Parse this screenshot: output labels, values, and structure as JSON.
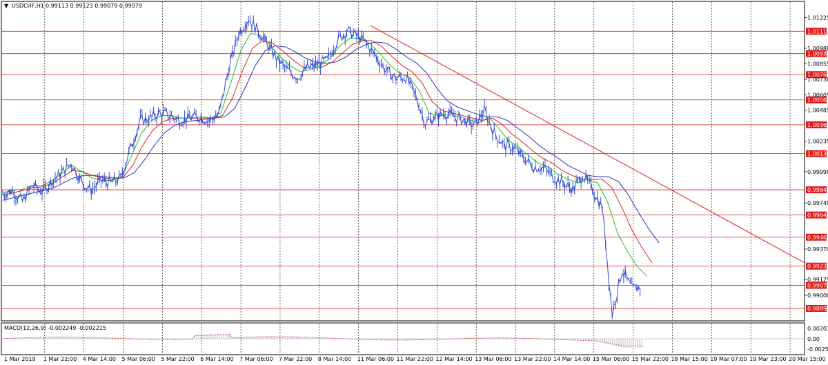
{
  "header": {
    "symbol_text": "USDCHF,H1",
    "ohlc_text": "0.99113 0.99123 0.99079 0.99079",
    "dropdown_glyph": "▼"
  },
  "macd": {
    "title": "MACD(12,26,9) -0.002249 -0.002215",
    "ticks": [
      "0.002016",
      "0.00",
      "-0.002592"
    ]
  },
  "chart_data": {
    "type": "line",
    "price_axis_ticks": [
      "1.01225",
      "1.00980",
      "1.00855",
      "1.00730",
      "1.00605",
      "1.00485",
      "1.00235",
      "0.99990",
      "0.99740",
      "0.99370",
      "0.99125",
      "0.99000"
    ],
    "ylim": [
      0.988,
      1.0135
    ],
    "levels": [
      "1.01116",
      "1.00937",
      "1.00768",
      "1.00566",
      "1.00366",
      "1.00135",
      "0.99845",
      "0.99643",
      "0.99465",
      "0.99233",
      "0.99079",
      "0.98894"
    ],
    "x_labels": [
      "1 Mar 2019",
      "1 Mar 22:00",
      "4 Mar 14:00",
      "5 Mar 06:00",
      "5 Mar 22:00",
      "6 Mar 14:00",
      "7 Mar 06:00",
      "7 Mar 22:00",
      "8 Mar 14:00",
      "11 Mar 06:00",
      "11 Mar 22:00",
      "12 Mar 14:00",
      "13 Mar 06:00",
      "13 Mar 22:00",
      "14 Mar 14:00",
      "15 Mar 06:00",
      "15 Mar 22:00",
      "18 Mar 15:00",
      "19 Mar 07:00",
      "19 Mar 23:00",
      "20 Mar 15:00"
    ],
    "price_path": [
      0.9981,
      0.9984,
      0.9975,
      0.9988,
      0.9983,
      0.9992,
      0.9998,
      1.0006,
      0.9991,
      0.9984,
      0.9992,
      0.999,
      0.9994,
      1.0018,
      1.004,
      1.0042,
      1.0046,
      1.0044,
      1.004,
      1.0042,
      1.0043,
      1.004,
      1.0045,
      1.0082,
      1.011,
      1.0122,
      1.0112,
      1.01,
      1.0088,
      1.008,
      1.0075,
      1.0082,
      1.0085,
      1.0088,
      1.0104,
      1.0112,
      1.0108,
      1.0102,
      1.0091,
      1.008,
      1.0074,
      1.0075,
      1.006,
      1.0038,
      1.0043,
      1.0046,
      1.0043,
      1.004,
      1.0036,
      1.0048,
      1.003,
      1.002,
      1.0018,
      1.001,
      1.0003,
      1.0002,
      0.9995,
      0.999,
      0.9985,
      0.9996,
      0.9985,
      0.997,
      0.9885,
      0.992,
      0.9905,
      0.9907
    ],
    "ma_fast": [
      0.9982,
      0.9984,
      0.9985,
      0.9988,
      0.9988,
      0.9992,
      0.9998,
      1.0004,
      0.9999,
      0.9994,
      0.9992,
      0.9992,
      0.9995,
      1.0012,
      1.003,
      1.004,
      1.0044,
      1.0044,
      1.0042,
      1.0042,
      1.0043,
      1.0042,
      1.0046,
      1.007,
      1.0096,
      1.011,
      1.0108,
      1.01,
      1.0091,
      1.0084,
      1.0079,
      1.0081,
      1.0084,
      1.009,
      1.01,
      1.0106,
      1.0106,
      1.0102,
      1.0094,
      1.0085,
      1.0078,
      1.0075,
      1.0064,
      1.0046,
      1.0044,
      1.0045,
      1.0043,
      1.0041,
      1.0038,
      1.0043,
      1.0034,
      1.0024,
      1.0019,
      1.0012,
      1.0006,
      1.0003,
      0.9997,
      0.9993,
      0.999,
      0.9993,
      0.999,
      0.9975,
      0.995,
      0.9935,
      0.9923,
      0.9915
    ],
    "ma_mid": [
      0.998,
      0.9982,
      0.9984,
      0.9986,
      0.9987,
      0.999,
      0.9995,
      1.0,
      0.9999,
      0.9996,
      0.9994,
      0.9993,
      0.9994,
      1.0004,
      1.002,
      1.0032,
      1.0039,
      1.0042,
      1.0042,
      1.0042,
      1.0042,
      1.0042,
      1.0044,
      1.0058,
      1.008,
      1.0098,
      1.0104,
      1.0102,
      1.0096,
      1.0089,
      1.0083,
      1.0082,
      1.0083,
      1.0087,
      1.0094,
      1.0101,
      1.0104,
      1.0104,
      1.0099,
      1.0091,
      1.0084,
      1.0079,
      1.007,
      1.0055,
      1.0048,
      1.0046,
      1.0044,
      1.0042,
      1.004,
      1.0042,
      1.0037,
      1.0029,
      1.0023,
      1.0016,
      1.001,
      1.0006,
      1.0,
      0.9996,
      0.9993,
      0.9993,
      0.9993,
      0.9986,
      0.997,
      0.9952,
      0.9938,
      0.9926
    ],
    "ma_slow": [
      0.9976,
      0.9978,
      0.998,
      0.9982,
      0.9984,
      0.9986,
      0.999,
      0.9994,
      0.9996,
      0.9996,
      0.9995,
      0.9994,
      0.9994,
      0.9998,
      1.0008,
      1.002,
      1.003,
      1.0036,
      1.0039,
      1.004,
      1.0041,
      1.0042,
      1.0043,
      1.005,
      1.0066,
      1.0084,
      1.0096,
      1.01,
      1.0099,
      1.0095,
      1.009,
      1.0087,
      1.0086,
      1.0087,
      1.0091,
      1.0097,
      1.0101,
      1.0103,
      1.0102,
      1.0097,
      1.0091,
      1.0086,
      1.0078,
      1.0066,
      1.0056,
      1.0051,
      1.0048,
      1.0045,
      1.0043,
      1.0043,
      1.004,
      1.0034,
      1.0028,
      1.0021,
      1.0015,
      1.001,
      1.0004,
      1.0,
      0.9996,
      0.9995,
      0.9995,
      0.9991,
      0.998,
      0.9966,
      0.9953,
      0.9942
    ],
    "trendline": [
      [
        0.46,
        1.0116
      ],
      [
        1.0,
        0.9926
      ]
    ],
    "grid": true
  },
  "colors": {
    "price": "#2f4bd6",
    "ma_fast": "#20c020",
    "ma_mid": "#e02020",
    "ma_slow": "#2030c0",
    "level": "#e31a1a",
    "level_tag": "#e31a1a",
    "macd_hist": "#c0c0c0",
    "macd_signal": "#e02020"
  }
}
